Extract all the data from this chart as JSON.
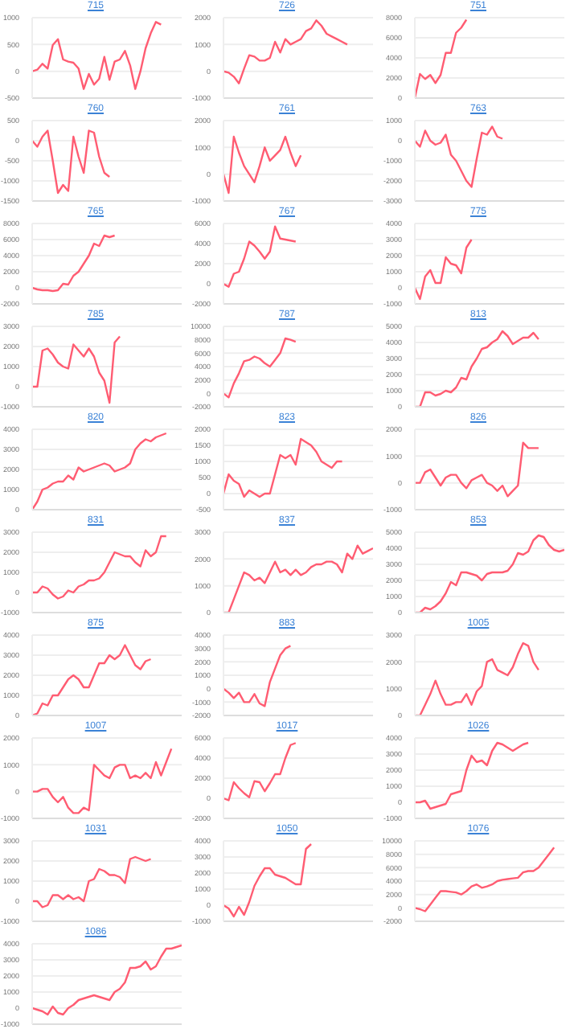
{
  "chart_data": [
    {
      "type": "line",
      "title": "715",
      "grid": "y",
      "tick_labels": "y",
      "color": "#ff5c72",
      "ylim": [
        -500,
        1000
      ],
      "yticks": [
        -500,
        0,
        500,
        1000
      ],
      "categories": [
        null,
        null,
        null,
        null,
        null,
        null,
        null,
        null,
        null,
        null,
        null,
        null,
        null,
        null,
        null,
        null,
        null,
        null,
        null,
        null,
        null,
        null,
        null,
        null,
        null,
        null,
        null,
        null,
        null,
        null
      ],
      "values": [
        0,
        30,
        140,
        50,
        490,
        600,
        220,
        180,
        160,
        50,
        -330,
        -50,
        -250,
        -140,
        270,
        -160,
        180,
        220,
        380,
        110,
        -330,
        0,
        430,
        710,
        920,
        870,
        null,
        null,
        null,
        null
      ]
    },
    {
      "type": "line",
      "title": "726",
      "grid": "y",
      "tick_labels": "y",
      "color": "#ff5c72",
      "ylim": [
        -1000,
        2000
      ],
      "yticks": [
        -1000,
        0,
        1000,
        2000
      ],
      "categories": [
        null,
        null,
        null,
        null,
        null,
        null,
        null,
        null,
        null,
        null,
        null,
        null,
        null,
        null,
        null,
        null,
        null,
        null,
        null,
        null,
        null,
        null,
        null,
        null,
        null,
        null,
        null,
        null,
        null,
        null
      ],
      "values": [
        0,
        -50,
        -200,
        -450,
        100,
        600,
        550,
        400,
        400,
        500,
        1100,
        700,
        1200,
        1000,
        1100,
        1200,
        1500,
        1600,
        1900,
        1700,
        1400,
        1300,
        1200,
        1100,
        1000,
        null,
        null,
        null,
        null,
        null
      ]
    },
    {
      "type": "line",
      "title": "751",
      "grid": "y",
      "tick_labels": "y",
      "color": "#ff5c72",
      "ylim": [
        0,
        8000
      ],
      "yticks": [
        0,
        2000,
        4000,
        6000,
        8000
      ],
      "categories": [
        null,
        null,
        null,
        null,
        null,
        null,
        null,
        null,
        null,
        null,
        null,
        null,
        null,
        null,
        null,
        null,
        null,
        null,
        null,
        null,
        null,
        null,
        null,
        null,
        null,
        null,
        null,
        null,
        null,
        null
      ],
      "values": [
        0,
        2400,
        1900,
        2300,
        1500,
        2300,
        4500,
        4500,
        6500,
        7000,
        7800,
        null,
        null,
        null,
        null,
        null,
        null,
        null,
        null,
        null,
        null,
        null,
        null,
        null,
        null,
        null,
        null,
        null,
        null,
        null
      ]
    },
    {
      "type": "line",
      "title": "760",
      "grid": "y",
      "tick_labels": "y",
      "color": "#ff5c72",
      "ylim": [
        -1500,
        500
      ],
      "yticks": [
        -1500,
        -1000,
        -500,
        0,
        500
      ],
      "categories": [
        null,
        null,
        null,
        null,
        null,
        null,
        null,
        null,
        null,
        null,
        null,
        null,
        null,
        null,
        null,
        null,
        null,
        null,
        null,
        null,
        null,
        null,
        null,
        null,
        null,
        null,
        null,
        null,
        null,
        null
      ],
      "values": [
        0,
        -150,
        100,
        250,
        -500,
        -1300,
        -1100,
        -1250,
        100,
        -400,
        -800,
        250,
        200,
        -400,
        -800,
        -900,
        null,
        null,
        null,
        null,
        null,
        null,
        null,
        null,
        null,
        null,
        null,
        null,
        null,
        null
      ]
    },
    {
      "type": "line",
      "title": "761",
      "grid": "y",
      "tick_labels": "y",
      "color": "#ff5c72",
      "ylim": [
        -1000,
        2000
      ],
      "yticks": [
        -1000,
        0,
        1000,
        2000
      ],
      "categories": [
        null,
        null,
        null,
        null,
        null,
        null,
        null,
        null,
        null,
        null,
        null,
        null,
        null,
        null,
        null,
        null,
        null,
        null,
        null,
        null,
        null,
        null,
        null,
        null,
        null,
        null,
        null,
        null,
        null,
        null
      ],
      "values": [
        0,
        -700,
        1400,
        800,
        300,
        0,
        -300,
        300,
        1000,
        500,
        700,
        900,
        1400,
        800,
        300,
        700,
        null,
        null,
        null,
        null,
        null,
        null,
        null,
        null,
        null,
        null,
        null,
        null,
        null,
        null
      ]
    },
    {
      "type": "line",
      "title": "763",
      "grid": "y",
      "tick_labels": "y",
      "color": "#ff5c72",
      "ylim": [
        -3000,
        1000
      ],
      "yticks": [
        -3000,
        -2000,
        -1000,
        0,
        1000
      ],
      "categories": [
        null,
        null,
        null,
        null,
        null,
        null,
        null,
        null,
        null,
        null,
        null,
        null,
        null,
        null,
        null,
        null,
        null,
        null,
        null,
        null,
        null,
        null,
        null,
        null,
        null,
        null,
        null,
        null,
        null,
        null
      ],
      "values": [
        0,
        -300,
        500,
        0,
        -200,
        -100,
        300,
        -700,
        -1000,
        -1500,
        -2000,
        -2300,
        -900,
        400,
        300,
        700,
        200,
        100,
        null,
        null,
        null,
        null,
        null,
        null,
        null,
        null,
        null,
        null,
        null,
        null
      ]
    },
    {
      "type": "line",
      "title": "765",
      "grid": "y",
      "tick_labels": "y",
      "color": "#ff5c72",
      "ylim": [
        -2000,
        8000
      ],
      "yticks": [
        -2000,
        0,
        2000,
        4000,
        6000,
        8000
      ],
      "categories": [
        null,
        null,
        null,
        null,
        null,
        null,
        null,
        null,
        null,
        null,
        null,
        null,
        null,
        null,
        null,
        null,
        null,
        null,
        null,
        null,
        null,
        null,
        null,
        null,
        null,
        null,
        null,
        null,
        null,
        null
      ],
      "values": [
        0,
        -200,
        -300,
        -300,
        -400,
        -300,
        500,
        400,
        1500,
        2000,
        3000,
        4000,
        5500,
        5200,
        6500,
        6300,
        6500,
        null,
        null,
        null,
        null,
        null,
        null,
        null,
        null,
        null,
        null,
        null,
        null,
        null
      ]
    },
    {
      "type": "line",
      "title": "767",
      "grid": "y",
      "tick_labels": "y",
      "color": "#ff5c72",
      "ylim": [
        -2000,
        6000
      ],
      "yticks": [
        -2000,
        0,
        2000,
        4000,
        6000
      ],
      "categories": [
        null,
        null,
        null,
        null,
        null,
        null,
        null,
        null,
        null,
        null,
        null,
        null,
        null,
        null,
        null,
        null,
        null,
        null,
        null,
        null,
        null,
        null,
        null,
        null,
        null,
        null,
        null,
        null,
        null,
        null
      ],
      "values": [
        0,
        -300,
        1000,
        1200,
        2500,
        4200,
        3800,
        3200,
        2500,
        3200,
        5700,
        4500,
        4400,
        4300,
        4200,
        null,
        null,
        null,
        null,
        null,
        null,
        null,
        null,
        null,
        null,
        null,
        null,
        null,
        null,
        null
      ]
    },
    {
      "type": "line",
      "title": "775",
      "grid": "y",
      "tick_labels": "y",
      "color": "#ff5c72",
      "ylim": [
        -1000,
        4000
      ],
      "yticks": [
        -1000,
        0,
        1000,
        2000,
        3000,
        4000
      ],
      "categories": [
        null,
        null,
        null,
        null,
        null,
        null,
        null,
        null,
        null,
        null,
        null,
        null,
        null,
        null,
        null,
        null,
        null,
        null,
        null,
        null,
        null,
        null,
        null,
        null,
        null,
        null,
        null,
        null,
        null,
        null
      ],
      "values": [
        0,
        -700,
        700,
        1100,
        300,
        300,
        1900,
        1500,
        1400,
        900,
        2500,
        3000,
        null,
        null,
        null,
        null,
        null,
        null,
        null,
        null,
        null,
        null,
        null,
        null,
        null,
        null,
        null,
        null,
        null,
        null
      ]
    },
    {
      "type": "line",
      "title": "785",
      "grid": "y",
      "tick_labels": "y",
      "color": "#ff5c72",
      "ylim": [
        -1000,
        3000
      ],
      "yticks": [
        -1000,
        0,
        1000,
        2000,
        3000
      ],
      "categories": [
        null,
        null,
        null,
        null,
        null,
        null,
        null,
        null,
        null,
        null,
        null,
        null,
        null,
        null,
        null,
        null,
        null,
        null,
        null,
        null,
        null,
        null,
        null,
        null,
        null,
        null,
        null,
        null,
        null,
        null
      ],
      "values": [
        0,
        0,
        1800,
        1900,
        1600,
        1200,
        1000,
        900,
        2100,
        1800,
        1500,
        1900,
        1500,
        700,
        300,
        -800,
        2200,
        2500,
        null,
        null,
        null,
        null,
        null,
        null,
        null,
        null,
        null,
        null,
        null,
        null
      ]
    },
    {
      "type": "line",
      "title": "787",
      "grid": "y",
      "tick_labels": "y",
      "color": "#ff5c72",
      "ylim": [
        -2000,
        10000
      ],
      "yticks": [
        -2000,
        0,
        2000,
        4000,
        6000,
        8000,
        10000
      ],
      "categories": [
        null,
        null,
        null,
        null,
        null,
        null,
        null,
        null,
        null,
        null,
        null,
        null,
        null,
        null,
        null,
        null,
        null,
        null,
        null,
        null,
        null,
        null,
        null,
        null,
        null,
        null,
        null,
        null,
        null,
        null
      ],
      "values": [
        0,
        -600,
        1500,
        3000,
        4800,
        5000,
        5500,
        5200,
        4500,
        4000,
        5000,
        6000,
        8200,
        8000,
        7700,
        null,
        null,
        null,
        null,
        null,
        null,
        null,
        null,
        null,
        null,
        null,
        null,
        null,
        null,
        null
      ]
    },
    {
      "type": "line",
      "title": "813",
      "grid": "y",
      "tick_labels": "y",
      "color": "#ff5c72",
      "ylim": [
        0,
        5000
      ],
      "yticks": [
        0,
        1000,
        2000,
        3000,
        4000,
        5000
      ],
      "categories": [
        null,
        null,
        null,
        null,
        null,
        null,
        null,
        null,
        null,
        null,
        null,
        null,
        null,
        null,
        null,
        null,
        null,
        null,
        null,
        null,
        null,
        null,
        null,
        null,
        null,
        null,
        null,
        null,
        null,
        null
      ],
      "values": [
        0,
        0,
        900,
        900,
        700,
        800,
        1000,
        900,
        1200,
        1800,
        1700,
        2500,
        3000,
        3600,
        3700,
        4000,
        4200,
        4700,
        4400,
        3900,
        4100,
        4300,
        4300,
        4600,
        4200,
        null,
        null,
        null,
        null,
        null
      ]
    },
    {
      "type": "line",
      "title": "820",
      "grid": "y",
      "tick_labels": "y",
      "color": "#ff5c72",
      "ylim": [
        0,
        4000
      ],
      "yticks": [
        0,
        1000,
        2000,
        3000,
        4000
      ],
      "categories": [
        null,
        null,
        null,
        null,
        null,
        null,
        null,
        null,
        null,
        null,
        null,
        null,
        null,
        null,
        null,
        null,
        null,
        null,
        null,
        null,
        null,
        null,
        null,
        null,
        null,
        null,
        null,
        null,
        null,
        null
      ],
      "values": [
        0,
        400,
        1000,
        1100,
        1300,
        1400,
        1400,
        1700,
        1500,
        2100,
        1900,
        2000,
        2100,
        2200,
        2300,
        2200,
        1900,
        2000,
        2100,
        2300,
        3000,
        3300,
        3500,
        3400,
        3600,
        3700,
        3800,
        null,
        null,
        null
      ]
    },
    {
      "type": "line",
      "title": "823",
      "grid": "y",
      "tick_labels": "y",
      "color": "#ff5c72",
      "ylim": [
        -500,
        2000
      ],
      "yticks": [
        -500,
        0,
        500,
        1000,
        1500,
        2000
      ],
      "categories": [
        null,
        null,
        null,
        null,
        null,
        null,
        null,
        null,
        null,
        null,
        null,
        null,
        null,
        null,
        null,
        null,
        null,
        null,
        null,
        null,
        null,
        null,
        null,
        null,
        null,
        null,
        null,
        null,
        null,
        null
      ],
      "values": [
        0,
        600,
        400,
        300,
        -100,
        100,
        0,
        -100,
        0,
        0,
        600,
        1200,
        1100,
        1200,
        900,
        1700,
        1600,
        1500,
        1300,
        1000,
        900,
        800,
        1000,
        1000,
        null,
        null,
        null,
        null,
        null,
        null
      ]
    },
    {
      "type": "line",
      "title": "826",
      "grid": "y",
      "tick_labels": "y",
      "color": "#ff5c72",
      "ylim": [
        -1000,
        2000
      ],
      "yticks": [
        -1000,
        0,
        1000,
        2000
      ],
      "categories": [
        null,
        null,
        null,
        null,
        null,
        null,
        null,
        null,
        null,
        null,
        null,
        null,
        null,
        null,
        null,
        null,
        null,
        null,
        null,
        null,
        null,
        null,
        null,
        null,
        null,
        null,
        null,
        null,
        null,
        null
      ],
      "values": [
        0,
        0,
        400,
        500,
        200,
        -100,
        200,
        300,
        300,
        0,
        -200,
        100,
        200,
        300,
        0,
        -100,
        -300,
        -100,
        -500,
        -300,
        -100,
        1500,
        1300,
        1300,
        1300,
        null,
        null,
        null,
        null,
        null
      ]
    },
    {
      "type": "line",
      "title": "831",
      "grid": "y",
      "tick_labels": "y",
      "color": "#ff5c72",
      "ylim": [
        -1000,
        3000
      ],
      "yticks": [
        -1000,
        0,
        1000,
        2000,
        3000
      ],
      "categories": [
        null,
        null,
        null,
        null,
        null,
        null,
        null,
        null,
        null,
        null,
        null,
        null,
        null,
        null,
        null,
        null,
        null,
        null,
        null,
        null,
        null,
        null,
        null,
        null,
        null,
        null,
        null,
        null,
        null,
        null
      ],
      "values": [
        0,
        0,
        300,
        200,
        -100,
        -300,
        -200,
        100,
        0,
        300,
        400,
        600,
        600,
        700,
        1000,
        1500,
        2000,
        1900,
        1800,
        1800,
        1500,
        1300,
        2100,
        1800,
        2000,
        2800,
        2800,
        null,
        null,
        null
      ]
    },
    {
      "type": "line",
      "title": "837",
      "grid": "y",
      "tick_labels": "y",
      "color": "#ff5c72",
      "ylim": [
        0,
        3000
      ],
      "yticks": [
        0,
        1000,
        2000,
        3000
      ],
      "categories": [
        null,
        null,
        null,
        null,
        null,
        null,
        null,
        null,
        null,
        null,
        null,
        null,
        null,
        null,
        null,
        null,
        null,
        null,
        null,
        null,
        null,
        null,
        null,
        null,
        null,
        null,
        null,
        null,
        null,
        null
      ],
      "values": [
        0,
        0,
        500,
        1000,
        1500,
        1400,
        1200,
        1300,
        1100,
        1500,
        1900,
        1500,
        1600,
        1400,
        1600,
        1400,
        1500,
        1700,
        1800,
        1800,
        1900,
        1900,
        1800,
        1500,
        2200,
        2000,
        2500,
        2200,
        2300,
        2400
      ]
    },
    {
      "type": "line",
      "title": "853",
      "grid": "y",
      "tick_labels": "y",
      "color": "#ff5c72",
      "ylim": [
        0,
        5000
      ],
      "yticks": [
        0,
        1000,
        2000,
        3000,
        4000,
        5000
      ],
      "categories": [
        null,
        null,
        null,
        null,
        null,
        null,
        null,
        null,
        null,
        null,
        null,
        null,
        null,
        null,
        null,
        null,
        null,
        null,
        null,
        null,
        null,
        null,
        null,
        null,
        null,
        null,
        null,
        null,
        null,
        null
      ],
      "values": [
        0,
        0,
        300,
        200,
        400,
        700,
        1200,
        1900,
        1700,
        2500,
        2500,
        2400,
        2300,
        2000,
        2400,
        2500,
        2500,
        2500,
        2600,
        3000,
        3700,
        3600,
        3800,
        4500,
        4800,
        4700,
        4200,
        3900,
        3800,
        3900
      ]
    },
    {
      "type": "line",
      "title": "875",
      "grid": "y",
      "tick_labels": "y",
      "color": "#ff5c72",
      "ylim": [
        0,
        4000
      ],
      "yticks": [
        0,
        1000,
        2000,
        3000,
        4000
      ],
      "categories": [
        null,
        null,
        null,
        null,
        null,
        null,
        null,
        null,
        null,
        null,
        null,
        null,
        null,
        null,
        null,
        null,
        null,
        null,
        null,
        null,
        null,
        null,
        null,
        null,
        null,
        null,
        null,
        null,
        null,
        null
      ],
      "values": [
        0,
        100,
        600,
        500,
        1000,
        1000,
        1400,
        1800,
        2000,
        1800,
        1400,
        1400,
        2000,
        2600,
        2600,
        3000,
        2800,
        3000,
        3500,
        3000,
        2500,
        2300,
        2700,
        2800,
        null,
        null,
        null,
        null,
        null,
        null
      ]
    },
    {
      "type": "line",
      "title": "883",
      "grid": "y",
      "tick_labels": "y",
      "color": "#ff5c72",
      "ylim": [
        -2000,
        4000
      ],
      "yticks": [
        -2000,
        -1000,
        0,
        1000,
        2000,
        3000,
        4000
      ],
      "categories": [
        null,
        null,
        null,
        null,
        null,
        null,
        null,
        null,
        null,
        null,
        null,
        null,
        null,
        null,
        null,
        null,
        null,
        null,
        null,
        null,
        null,
        null,
        null,
        null,
        null,
        null,
        null,
        null,
        null,
        null
      ],
      "values": [
        0,
        -300,
        -700,
        -300,
        -1000,
        -1000,
        -400,
        -1100,
        -1300,
        500,
        1500,
        2500,
        3000,
        3200,
        null,
        null,
        null,
        null,
        null,
        null,
        null,
        null,
        null,
        null,
        null,
        null,
        null,
        null,
        null,
        null
      ]
    },
    {
      "type": "line",
      "title": "1005",
      "grid": "y",
      "tick_labels": "y",
      "color": "#ff5c72",
      "ylim": [
        0,
        3000
      ],
      "yticks": [
        0,
        1000,
        2000,
        3000
      ],
      "categories": [
        null,
        null,
        null,
        null,
        null,
        null,
        null,
        null,
        null,
        null,
        null,
        null,
        null,
        null,
        null,
        null,
        null,
        null,
        null,
        null,
        null,
        null,
        null,
        null,
        null,
        null,
        null,
        null,
        null,
        null
      ],
      "values": [
        0,
        0,
        400,
        800,
        1300,
        800,
        400,
        400,
        500,
        500,
        800,
        400,
        900,
        1100,
        2000,
        2100,
        1700,
        1600,
        1500,
        1800,
        2300,
        2700,
        2600,
        2000,
        1700,
        null,
        null,
        null,
        null,
        null
      ]
    },
    {
      "type": "line",
      "title": "1007",
      "grid": "y",
      "tick_labels": "y",
      "color": "#ff5c72",
      "ylim": [
        -1000,
        2000
      ],
      "yticks": [
        -1000,
        0,
        1000,
        2000
      ],
      "categories": [
        null,
        null,
        null,
        null,
        null,
        null,
        null,
        null,
        null,
        null,
        null,
        null,
        null,
        null,
        null,
        null,
        null,
        null,
        null,
        null,
        null,
        null,
        null,
        null,
        null,
        null,
        null,
        null,
        null,
        null
      ],
      "values": [
        0,
        0,
        100,
        100,
        -200,
        -400,
        -200,
        -600,
        -800,
        -800,
        -600,
        -700,
        1000,
        800,
        600,
        500,
        900,
        1000,
        1000,
        500,
        600,
        500,
        700,
        500,
        1100,
        600,
        1100,
        1600,
        null,
        null
      ]
    },
    {
      "type": "line",
      "title": "1017",
      "grid": "y",
      "tick_labels": "y",
      "color": "#ff5c72",
      "ylim": [
        -2000,
        6000
      ],
      "yticks": [
        -2000,
        0,
        2000,
        4000,
        6000
      ],
      "categories": [
        null,
        null,
        null,
        null,
        null,
        null,
        null,
        null,
        null,
        null,
        null,
        null,
        null,
        null,
        null,
        null,
        null,
        null,
        null,
        null,
        null,
        null,
        null,
        null,
        null,
        null,
        null,
        null,
        null,
        null
      ],
      "values": [
        0,
        -200,
        1600,
        1000,
        500,
        100,
        1700,
        1600,
        700,
        1500,
        2400,
        2400,
        4000,
        5300,
        5500,
        null,
        null,
        null,
        null,
        null,
        null,
        null,
        null,
        null,
        null,
        null,
        null,
        null,
        null,
        null
      ]
    },
    {
      "type": "line",
      "title": "1026",
      "grid": "y",
      "tick_labels": "y",
      "color": "#ff5c72",
      "ylim": [
        -1000,
        4000
      ],
      "yticks": [
        -1000,
        0,
        1000,
        2000,
        3000,
        4000
      ],
      "categories": [
        null,
        null,
        null,
        null,
        null,
        null,
        null,
        null,
        null,
        null,
        null,
        null,
        null,
        null,
        null,
        null,
        null,
        null,
        null,
        null,
        null,
        null,
        null,
        null,
        null,
        null,
        null,
        null,
        null,
        null
      ],
      "values": [
        0,
        0,
        100,
        -400,
        -300,
        -200,
        -100,
        500,
        600,
        700,
        2000,
        2900,
        2500,
        2600,
        2300,
        3200,
        3700,
        3600,
        3400,
        3200,
        3400,
        3600,
        3700,
        null,
        null,
        null,
        null,
        null,
        null,
        null
      ]
    },
    {
      "type": "line",
      "title": "1031",
      "grid": "y",
      "tick_labels": "y",
      "color": "#ff5c72",
      "ylim": [
        -1000,
        3000
      ],
      "yticks": [
        -1000,
        0,
        1000,
        2000,
        3000
      ],
      "categories": [
        null,
        null,
        null,
        null,
        null,
        null,
        null,
        null,
        null,
        null,
        null,
        null,
        null,
        null,
        null,
        null,
        null,
        null,
        null,
        null,
        null,
        null,
        null,
        null,
        null,
        null,
        null,
        null,
        null,
        null
      ],
      "values": [
        0,
        0,
        -300,
        -200,
        300,
        300,
        100,
        300,
        100,
        200,
        0,
        1000,
        1100,
        1600,
        1500,
        1300,
        1300,
        1200,
        900,
        2100,
        2200,
        2100,
        2000,
        2100,
        null,
        null,
        null,
        null,
        null,
        null
      ]
    },
    {
      "type": "line",
      "title": "1050",
      "grid": "y",
      "tick_labels": "y",
      "color": "#ff5c72",
      "ylim": [
        -1000,
        4000
      ],
      "yticks": [
        -1000,
        0,
        1000,
        2000,
        3000,
        4000
      ],
      "categories": [
        null,
        null,
        null,
        null,
        null,
        null,
        null,
        null,
        null,
        null,
        null,
        null,
        null,
        null,
        null,
        null,
        null,
        null,
        null,
        null,
        null,
        null,
        null,
        null,
        null,
        null,
        null,
        null,
        null,
        null
      ],
      "values": [
        0,
        -200,
        -700,
        -100,
        -600,
        200,
        1200,
        1800,
        2300,
        2300,
        1900,
        1800,
        1700,
        1500,
        1300,
        1300,
        3500,
        3800,
        null,
        null,
        null,
        null,
        null,
        null,
        null,
        null,
        null,
        null,
        null,
        null
      ]
    },
    {
      "type": "line",
      "title": "1076",
      "grid": "y",
      "tick_labels": "y",
      "color": "#ff5c72",
      "ylim": [
        -2000,
        10000
      ],
      "yticks": [
        -2000,
        0,
        2000,
        4000,
        6000,
        8000,
        10000
      ],
      "categories": [
        null,
        null,
        null,
        null,
        null,
        null,
        null,
        null,
        null,
        null,
        null,
        null,
        null,
        null,
        null,
        null,
        null,
        null,
        null,
        null,
        null,
        null,
        null,
        null,
        null,
        null,
        null,
        null,
        null,
        null
      ],
      "values": [
        0,
        -200,
        -500,
        500,
        1500,
        2500,
        2500,
        2400,
        2300,
        2000,
        2500,
        3200,
        3500,
        3000,
        3200,
        3500,
        4000,
        4200,
        4300,
        4400,
        4500,
        5300,
        5500,
        5500,
        6000,
        7000,
        8000,
        9000,
        null,
        null
      ]
    },
    {
      "type": "line",
      "title": "1086",
      "grid": "y",
      "tick_labels": "y",
      "color": "#ff5c72",
      "ylim": [
        -1000,
        4000
      ],
      "yticks": [
        -1000,
        0,
        1000,
        2000,
        3000,
        4000
      ],
      "categories": [
        null,
        null,
        null,
        null,
        null,
        null,
        null,
        null,
        null,
        null,
        null,
        null,
        null,
        null,
        null,
        null,
        null,
        null,
        null,
        null,
        null,
        null,
        null,
        null,
        null,
        null,
        null,
        null,
        null,
        null
      ],
      "values": [
        0,
        -100,
        -200,
        -400,
        100,
        -300,
        -400,
        0,
        200,
        500,
        600,
        700,
        800,
        700,
        600,
        500,
        1000,
        1200,
        1600,
        2500,
        2500,
        2600,
        2900,
        2400,
        2600,
        3200,
        3700,
        3700,
        3800,
        3900
      ]
    }
  ]
}
